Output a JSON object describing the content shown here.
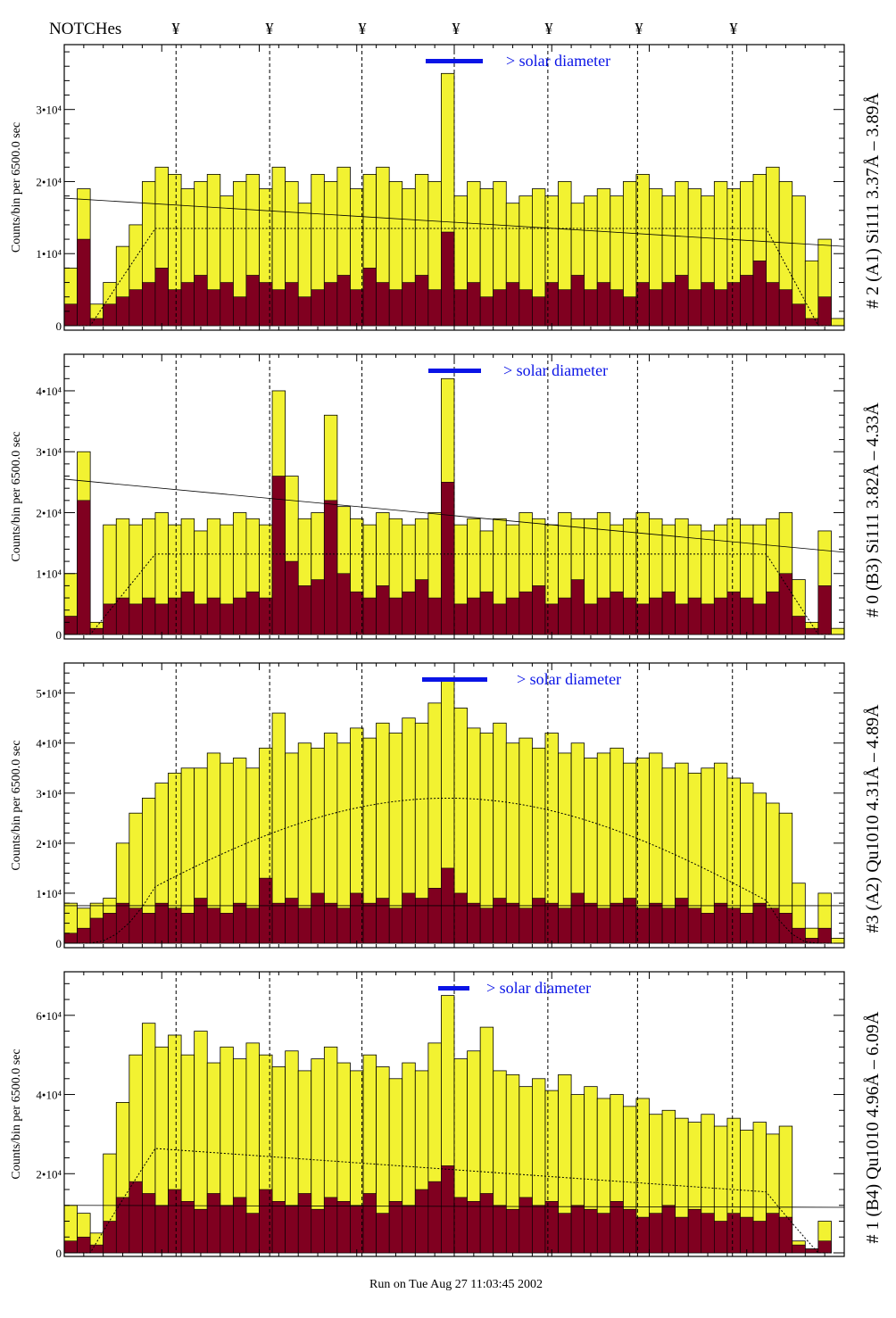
{
  "header": {
    "notches_label": "NOTCHes",
    "notch_symbol": "¥"
  },
  "footer": {
    "run_info": "Run on Tue Aug 27 11:03:45 2002"
  },
  "colors": {
    "counts": "#f2f231",
    "background_counts": "#800020",
    "solar_bar": "#0a14e6",
    "text": "#000000"
  },
  "chart_data": [
    {
      "type": "bar",
      "title": "# 2 (A1) Si111  3.37Å – 3.89Å",
      "ylabel": "Counts/bin per   6500.0 sec",
      "solar_label": "> solar diameter",
      "y_unit": 10000,
      "ylim": [
        0,
        3.9
      ],
      "yticks": [
        {
          "v": 0,
          "label": "0"
        },
        {
          "v": 1,
          "label": "1•10⁴"
        },
        {
          "v": 2,
          "label": "2•10⁴"
        },
        {
          "v": 3,
          "label": "3•10⁴"
        }
      ],
      "notch_bins": [
        8.6,
        15.8,
        22.9,
        30,
        37.2,
        44.1,
        51.4
      ],
      "counts": [
        0.8,
        1.9,
        0.3,
        0.6,
        1.1,
        1.4,
        2.0,
        2.2,
        2.1,
        1.9,
        2.0,
        2.1,
        1.8,
        2.0,
        2.1,
        1.9,
        2.2,
        2.0,
        1.7,
        2.1,
        2.0,
        2.2,
        1.9,
        2.1,
        2.2,
        2.0,
        1.9,
        2.1,
        2.0,
        3.5,
        1.8,
        2.0,
        1.9,
        2.0,
        1.7,
        1.8,
        1.9,
        1.8,
        2.0,
        1.7,
        1.8,
        1.9,
        1.8,
        2.0,
        2.1,
        1.9,
        1.8,
        2.0,
        1.9,
        1.8,
        2.0,
        1.9,
        2.0,
        2.1,
        2.2,
        2.0,
        1.8,
        0.9,
        1.2,
        0.1
      ],
      "background": [
        0.3,
        1.2,
        0.1,
        0.3,
        0.4,
        0.5,
        0.6,
        0.8,
        0.5,
        0.6,
        0.7,
        0.5,
        0.6,
        0.4,
        0.7,
        0.6,
        0.5,
        0.6,
        0.4,
        0.5,
        0.6,
        0.7,
        0.5,
        0.8,
        0.6,
        0.5,
        0.6,
        0.7,
        0.5,
        1.3,
        0.5,
        0.6,
        0.4,
        0.5,
        0.6,
        0.5,
        0.4,
        0.6,
        0.5,
        0.7,
        0.5,
        0.6,
        0.5,
        0.4,
        0.6,
        0.5,
        0.6,
        0.7,
        0.5,
        0.6,
        0.5,
        0.6,
        0.7,
        0.9,
        0.6,
        0.5,
        0.3,
        0.1,
        0.4,
        0.0
      ],
      "efficiency_plateau": 1.35,
      "fit_line": [
        1.77,
        1.1
      ]
    },
    {
      "type": "bar",
      "title": "# 0 (B3) Si111  3.82Å – 4.33Å",
      "ylabel": "Counts/bin per   6500.0 sec",
      "solar_label": "> solar diameter",
      "y_unit": 10000,
      "ylim": [
        0,
        4.6
      ],
      "yticks": [
        {
          "v": 0,
          "label": "0"
        },
        {
          "v": 1,
          "label": "1•10⁴"
        },
        {
          "v": 2,
          "label": "2•10⁴"
        },
        {
          "v": 3,
          "label": "3•10⁴"
        },
        {
          "v": 4,
          "label": "4•10⁴"
        }
      ],
      "notch_bins": [
        8.6,
        15.8,
        22.9,
        30,
        37.2,
        44.1,
        51.4
      ],
      "counts": [
        1.0,
        3.0,
        0.2,
        1.8,
        1.9,
        1.8,
        1.9,
        2.0,
        1.8,
        1.9,
        1.7,
        1.9,
        1.8,
        2.0,
        1.9,
        1.8,
        4.0,
        2.6,
        1.9,
        2.0,
        3.6,
        2.1,
        1.9,
        1.8,
        2.0,
        1.9,
        1.8,
        1.9,
        2.0,
        4.2,
        1.8,
        1.9,
        1.7,
        1.9,
        1.8,
        2.0,
        1.9,
        1.8,
        2.0,
        1.9,
        1.9,
        2.0,
        1.8,
        1.9,
        2.0,
        1.9,
        1.8,
        1.9,
        1.8,
        1.7,
        1.8,
        1.9,
        1.8,
        1.8,
        1.9,
        2.0,
        0.9,
        0.2,
        1.7,
        0.1
      ],
      "background": [
        0.3,
        2.2,
        0.1,
        0.5,
        0.6,
        0.5,
        0.6,
        0.5,
        0.6,
        0.7,
        0.5,
        0.6,
        0.5,
        0.6,
        0.7,
        0.6,
        2.6,
        1.2,
        0.8,
        0.9,
        2.2,
        1.0,
        0.7,
        0.6,
        0.8,
        0.6,
        0.7,
        0.9,
        0.6,
        2.5,
        0.5,
        0.6,
        0.7,
        0.5,
        0.6,
        0.7,
        0.8,
        0.5,
        0.6,
        0.9,
        0.5,
        0.6,
        0.7,
        0.6,
        0.5,
        0.6,
        0.7,
        0.5,
        0.6,
        0.5,
        0.6,
        0.7,
        0.6,
        0.5,
        0.7,
        1.0,
        0.3,
        0.1,
        0.8,
        0.0
      ],
      "efficiency_plateau": 1.32,
      "fit_line": [
        2.55,
        1.35
      ]
    },
    {
      "type": "bar",
      "title": "#3 (A2) Qu1010  4.31Å – 4.89Å",
      "ylabel": "Counts/bin per   6500.0 sec",
      "solar_label": "> solar diameter",
      "y_unit": 10000,
      "ylim": [
        0,
        5.6
      ],
      "yticks": [
        {
          "v": 0,
          "label": "0"
        },
        {
          "v": 1,
          "label": "1•10⁴"
        },
        {
          "v": 2,
          "label": "2•10⁴"
        },
        {
          "v": 3,
          "label": "3•10⁴"
        },
        {
          "v": 4,
          "label": "4•10⁴"
        },
        {
          "v": 5,
          "label": "5•10⁴"
        }
      ],
      "notch_bins": [
        8.6,
        15.8,
        22.9,
        30,
        37.2,
        44.1,
        51.4
      ],
      "counts": [
        0.8,
        0.7,
        0.8,
        0.9,
        2.0,
        2.6,
        2.9,
        3.2,
        3.4,
        3.5,
        3.5,
        3.8,
        3.6,
        3.7,
        3.5,
        3.9,
        4.6,
        3.8,
        4.0,
        3.9,
        4.2,
        4.0,
        4.3,
        4.1,
        4.4,
        4.2,
        4.5,
        4.4,
        4.8,
        5.3,
        4.7,
        4.3,
        4.2,
        4.4,
        4.0,
        4.1,
        3.9,
        4.2,
        3.8,
        4.0,
        3.7,
        3.8,
        3.9,
        3.6,
        3.7,
        3.8,
        3.5,
        3.6,
        3.4,
        3.5,
        3.6,
        3.3,
        3.2,
        3.0,
        2.8,
        2.6,
        1.2,
        0.3,
        1.0,
        0.1
      ],
      "background": [
        0.2,
        0.3,
        0.5,
        0.6,
        0.8,
        0.7,
        0.6,
        0.8,
        0.7,
        0.6,
        0.9,
        0.7,
        0.6,
        0.8,
        0.7,
        1.3,
        0.8,
        0.9,
        0.7,
        1.0,
        0.8,
        0.7,
        1.0,
        0.8,
        0.9,
        0.7,
        1.0,
        0.9,
        1.1,
        1.5,
        1.0,
        0.8,
        0.7,
        0.9,
        0.8,
        0.7,
        0.9,
        0.8,
        0.7,
        1.0,
        0.8,
        0.7,
        0.8,
        0.9,
        0.7,
        0.8,
        0.7,
        0.9,
        0.7,
        0.6,
        0.8,
        0.7,
        0.6,
        0.8,
        0.7,
        0.6,
        0.3,
        0.1,
        0.3,
        0.0
      ],
      "efficiency_plateau": 2.9,
      "fit_line": [
        0.75,
        0.75
      ]
    },
    {
      "type": "bar",
      "title": "# 1 (B4) Qu1010 4.96Å – 6.09Å",
      "ylabel": "Counts/bin per   6500.0 sec",
      "solar_label": "> solar diameter",
      "y_unit": 10000,
      "ylim": [
        0,
        7.1
      ],
      "yticks": [
        {
          "v": 0,
          "label": "0"
        },
        {
          "v": 2,
          "label": "2•10⁴"
        },
        {
          "v": 4,
          "label": "4•10⁴"
        },
        {
          "v": 6,
          "label": "6•10⁴"
        }
      ],
      "notch_bins": [
        8.6,
        15.8,
        22.9,
        30,
        37.2,
        44.1,
        51.4
      ],
      "counts": [
        1.2,
        1.0,
        0.5,
        2.5,
        3.8,
        5.0,
        5.8,
        5.2,
        5.5,
        5.0,
        5.6,
        4.8,
        5.2,
        4.9,
        5.3,
        5.0,
        4.7,
        5.1,
        4.6,
        4.9,
        5.2,
        4.8,
        4.6,
        5.0,
        4.7,
        4.4,
        4.8,
        4.6,
        5.3,
        6.5,
        4.9,
        5.1,
        5.7,
        4.6,
        4.5,
        4.2,
        4.4,
        4.1,
        4.5,
        4.0,
        4.2,
        3.9,
        4.0,
        3.7,
        3.9,
        3.5,
        3.6,
        3.4,
        3.3,
        3.5,
        3.2,
        3.4,
        3.1,
        3.3,
        3.0,
        3.2,
        0.3,
        0.1,
        0.8,
        0.0
      ],
      "background": [
        0.3,
        0.4,
        0.2,
        0.8,
        1.4,
        1.8,
        1.5,
        1.2,
        1.6,
        1.3,
        1.1,
        1.5,
        1.2,
        1.4,
        1.0,
        1.6,
        1.3,
        1.2,
        1.5,
        1.1,
        1.4,
        1.3,
        1.2,
        1.5,
        1.0,
        1.3,
        1.2,
        1.6,
        1.8,
        2.2,
        1.4,
        1.3,
        1.5,
        1.2,
        1.1,
        1.4,
        1.2,
        1.3,
        1.0,
        1.2,
        1.1,
        1.0,
        1.3,
        1.1,
        0.9,
        1.0,
        1.2,
        0.9,
        1.1,
        1.0,
        0.8,
        1.0,
        0.9,
        0.8,
        1.0,
        0.9,
        0.2,
        0.1,
        0.3,
        0.0
      ],
      "efficiency_plateau": 2.8,
      "efficiency_end": 1.4,
      "fit_line": [
        1.2,
        1.15
      ]
    }
  ]
}
